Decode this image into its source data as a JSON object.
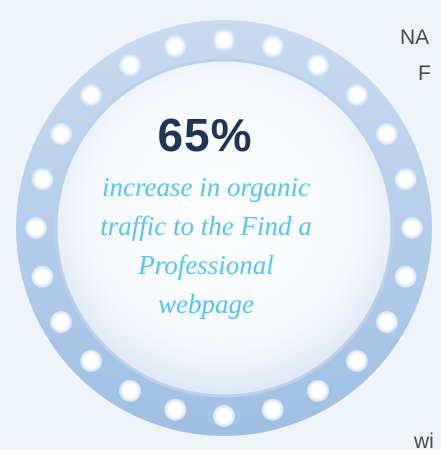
{
  "stat": {
    "value": "65%",
    "description": "increase in organic traffic to the Find a Professional webpage"
  },
  "side_text": [
    "NA",
    "F",
    "wi"
  ]
}
